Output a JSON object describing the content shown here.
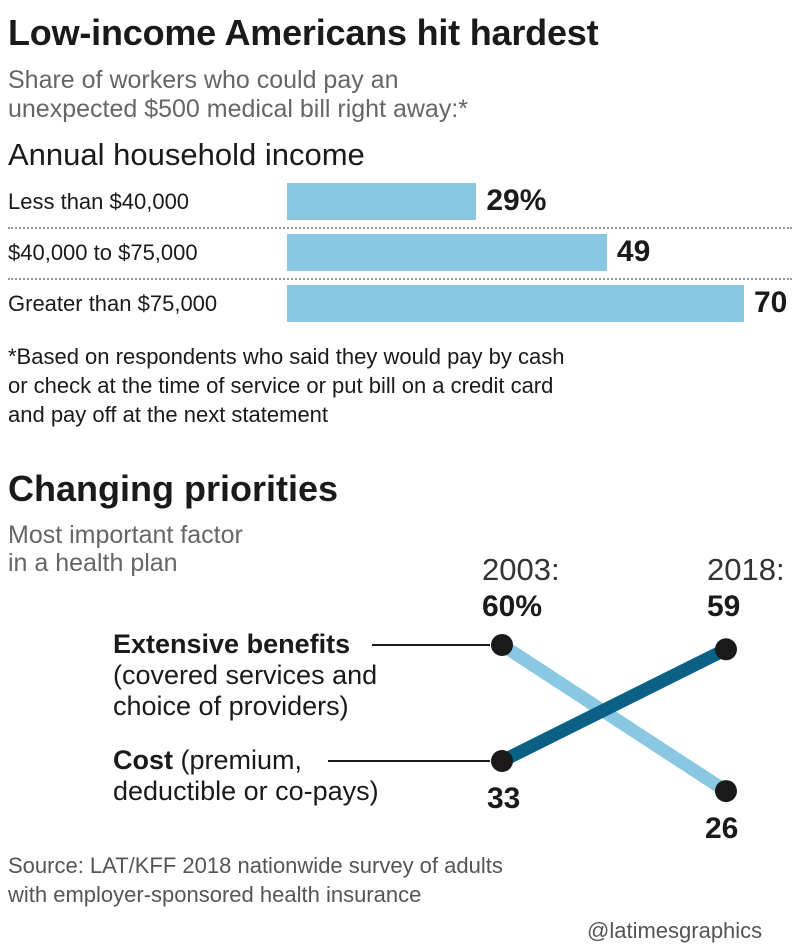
{
  "header": {
    "title": "Low-income Americans hit hardest",
    "subtitle_line1": "Share of workers who could pay an",
    "subtitle_line2": "unexpected $500 medical bill right away:*"
  },
  "chart_data": [
    {
      "type": "bar",
      "orientation": "horizontal",
      "title": "Low-income Americans hit hardest",
      "subtitle": "Share of workers who could pay an unexpected $500 medical bill right away:*",
      "section_label": "Annual household income",
      "categories": [
        "Less than $40,000",
        "$40,000 to $75,000",
        "Greater than $75,000"
      ],
      "values": [
        29,
        49,
        70
      ],
      "value_labels": [
        "29%",
        "49",
        "70"
      ],
      "color": "#89c7e3",
      "footnote": [
        "*Based on respondents who said they would pay by cash",
        "or check at the time of service or put bill on a credit card",
        "and pay off at the next statement"
      ]
    },
    {
      "type": "line",
      "style": "slope",
      "title": "Changing priorities",
      "subtitle": [
        "Most important factor",
        "in a health plan"
      ],
      "x": [
        "2003:",
        "2018:"
      ],
      "series": [
        {
          "name": "Extensive benefits",
          "name_detail": [
            "(covered services and",
            "choice of providers)"
          ],
          "values": [
            60,
            26
          ],
          "value_labels": [
            "60%",
            "26"
          ],
          "color": "#89c7e3"
        },
        {
          "name": "Cost",
          "name_detail": [
            "(premium,",
            "deductible or co-pays)"
          ],
          "values": [
            33,
            59
          ],
          "value_labels": [
            "33",
            "59"
          ],
          "color": "#0b6185"
        }
      ]
    }
  ],
  "source": {
    "line1": "Source: LAT/KFF 2018 nationwide survey of adults",
    "line2": "with employer-sponsored health insurance"
  },
  "credit": "@latimesgraphics",
  "colors": {
    "bar": "#89c7e3",
    "benefits": "#89c7e3",
    "cost": "#0b6185",
    "dot": "#1a1a1a"
  }
}
